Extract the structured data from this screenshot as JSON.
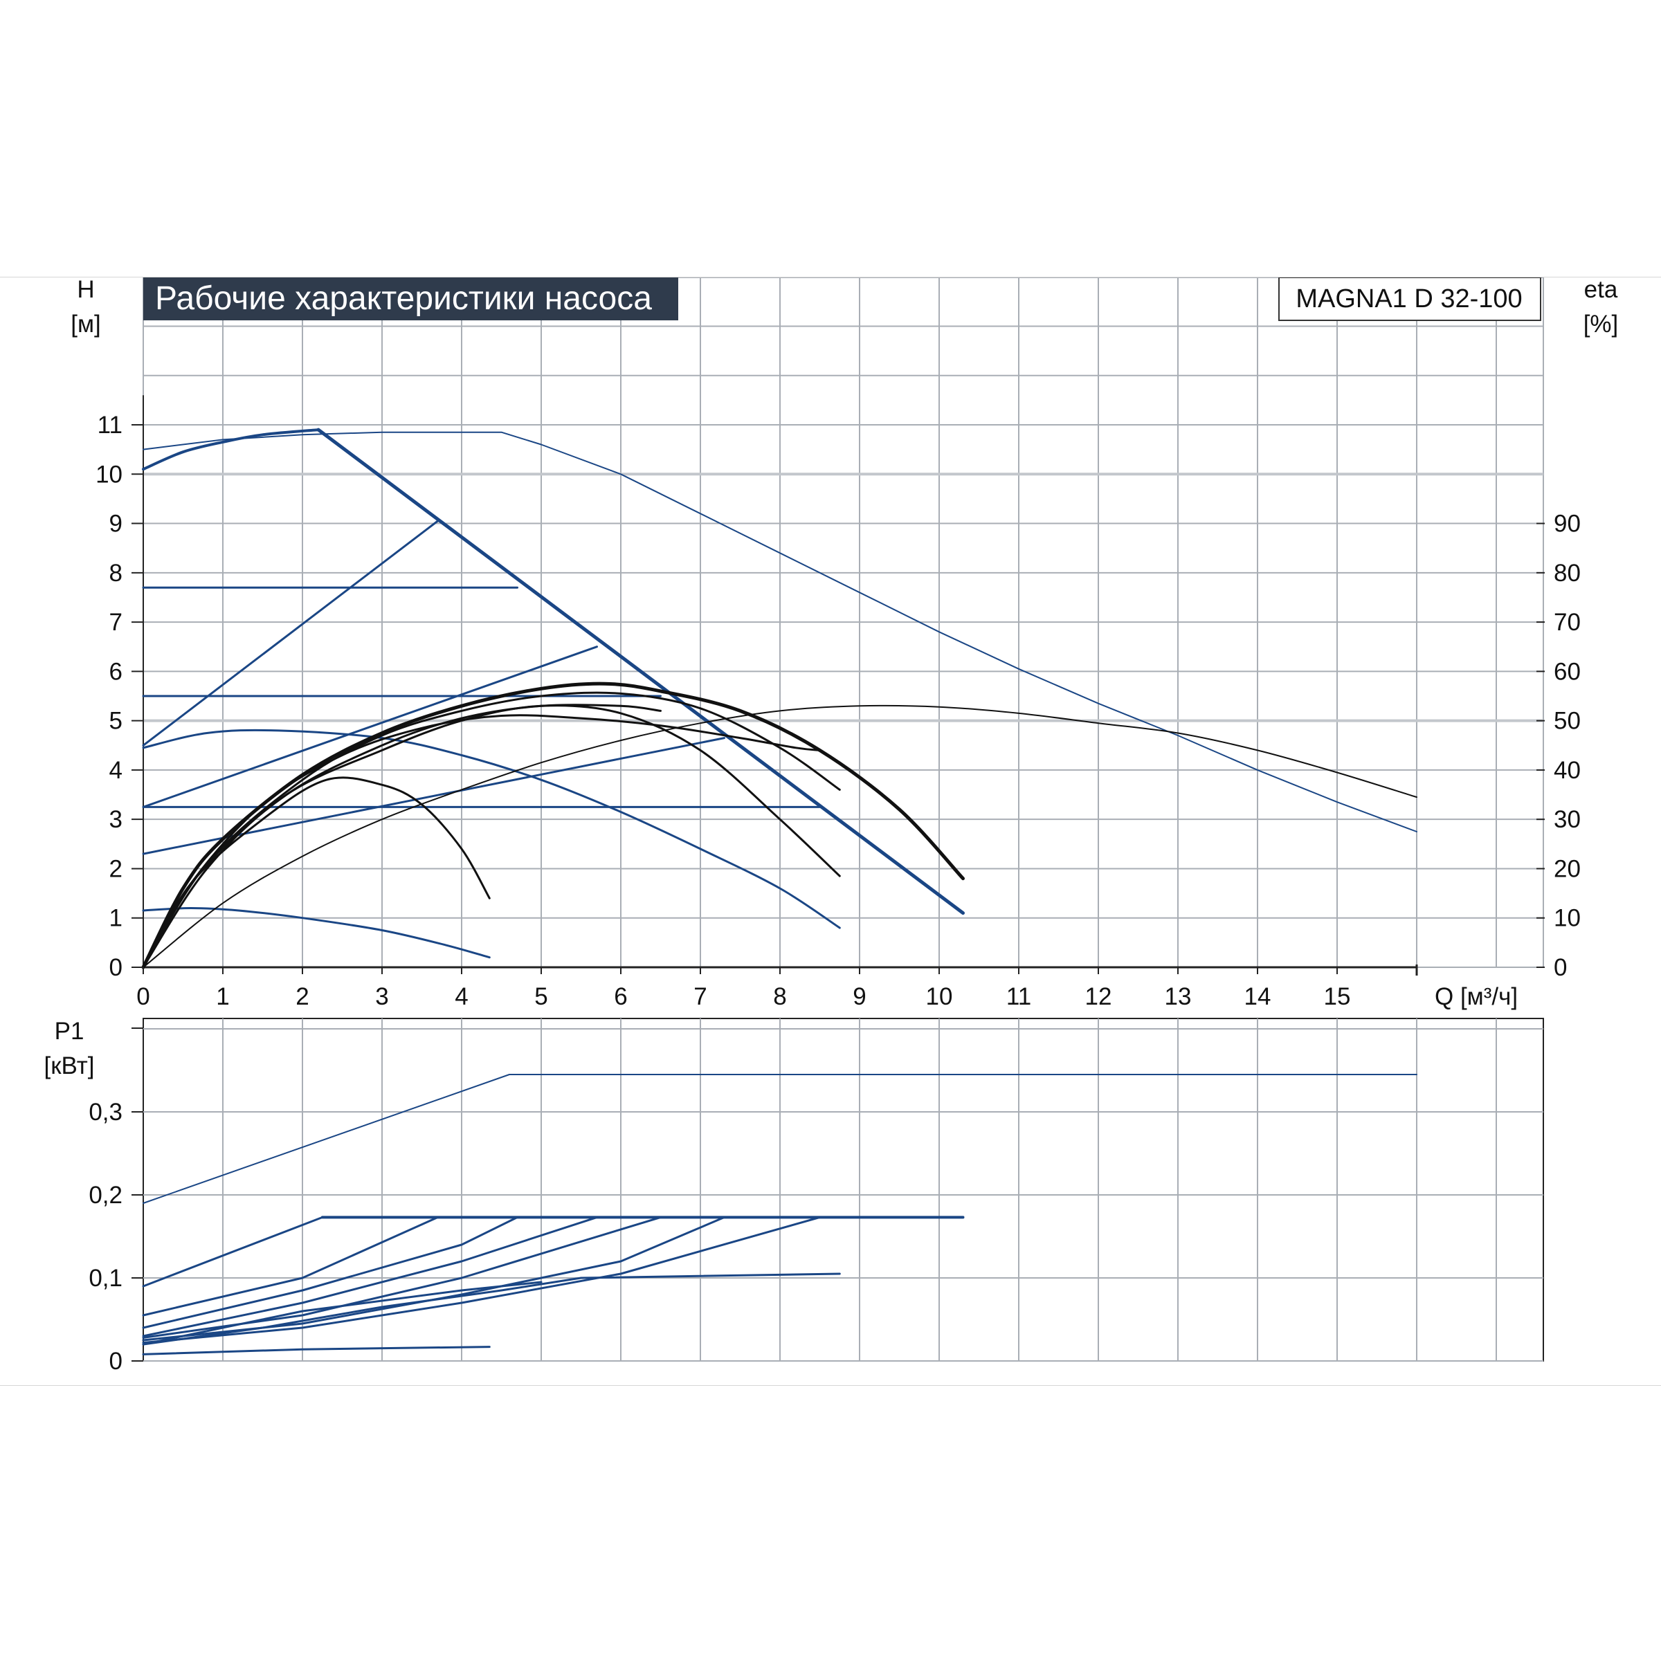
{
  "title": "Рабочие характеристики насоса",
  "model": "MAGNA1 D 32-100",
  "colors": {
    "title_bg": "#2f3b4c",
    "grid": "#a9aeb5",
    "grid_major": "#c3c7cc",
    "frame": "#222222",
    "series_blue": "#1a4685",
    "series_black": "#111111"
  },
  "chart_data": [
    {
      "type": "line",
      "panel": "head",
      "xlabel": "Q [м³/ч]",
      "ylabel_left": "H",
      "ylabel_left_unit": "[м]",
      "ylabel_right": "eta",
      "ylabel_right_unit": "[%]",
      "xlim": [
        0,
        16
      ],
      "ylim_left": [
        0,
        13.2
      ],
      "ylim_right": [
        0,
        132
      ],
      "x_ticks": [
        0,
        1,
        2,
        3,
        4,
        5,
        6,
        7,
        8,
        9,
        10,
        11,
        12,
        13,
        14,
        15
      ],
      "y_ticks_left": [
        0,
        1,
        2,
        3,
        4,
        5,
        6,
        7,
        8,
        9,
        10,
        11
      ],
      "y_ticks_right": [
        0,
        10,
        20,
        30,
        40,
        50,
        60,
        70,
        80,
        90
      ],
      "grid": true,
      "series": [
        {
          "role": "head-max-twin",
          "color": "blue",
          "width": 2,
          "smooth": false,
          "points": [
            [
              0,
              10.5
            ],
            [
              1,
              10.7
            ],
            [
              2,
              10.8
            ],
            [
              3,
              10.85
            ],
            [
              4.5,
              10.85
            ],
            [
              5,
              10.6
            ],
            [
              6,
              10.0
            ],
            [
              7,
              9.2
            ],
            [
              8,
              8.4
            ],
            [
              9,
              7.6
            ],
            [
              10,
              6.8
            ],
            [
              11,
              6.05
            ],
            [
              12,
              5.35
            ],
            [
              13,
              4.7
            ],
            [
              14,
              4.0
            ],
            [
              15,
              3.35
            ],
            [
              16,
              2.75
            ]
          ]
        },
        {
          "role": "head-max",
          "color": "blue",
          "width": 4,
          "smooth": true,
          "points": [
            [
              0,
              10.1
            ],
            [
              0.5,
              10.45
            ],
            [
              1,
              10.65
            ],
            [
              1.5,
              10.8
            ],
            [
              2.2,
              10.9
            ]
          ]
        },
        {
          "role": "head-max-limit",
          "color": "blue",
          "width": 5,
          "smooth": false,
          "points": [
            [
              2.2,
              10.9
            ],
            [
              10.3,
              1.1
            ]
          ]
        },
        {
          "role": "prop-pressure-1",
          "color": "blue",
          "width": 3,
          "smooth": false,
          "points": [
            [
              0,
              4.5
            ],
            [
              3.7,
              9.05
            ]
          ]
        },
        {
          "role": "const-pressure-1",
          "color": "blue",
          "width": 3,
          "smooth": false,
          "points": [
            [
              0,
              7.7
            ],
            [
              4.7,
              7.7
            ]
          ]
        },
        {
          "role": "prop-pressure-2",
          "color": "blue",
          "width": 3,
          "smooth": false,
          "points": [
            [
              0,
              3.25
            ],
            [
              5.7,
              6.5
            ]
          ]
        },
        {
          "role": "const-pressure-2",
          "color": "blue",
          "width": 3,
          "smooth": false,
          "points": [
            [
              0,
              5.5
            ],
            [
              6.5,
              5.5
            ]
          ]
        },
        {
          "role": "prop-pressure-3",
          "color": "blue",
          "width": 3,
          "smooth": false,
          "points": [
            [
              0,
              2.3
            ],
            [
              7.3,
              4.65
            ]
          ]
        },
        {
          "role": "const-pressure-3",
          "color": "blue",
          "width": 3,
          "smooth": false,
          "points": [
            [
              0,
              3.25
            ],
            [
              8.5,
              3.25
            ]
          ]
        },
        {
          "role": "speed-curve-mid",
          "color": "blue",
          "width": 3,
          "smooth": true,
          "points": [
            [
              0,
              4.45
            ],
            [
              0.8,
              4.75
            ],
            [
              1.7,
              4.8
            ],
            [
              3,
              4.65
            ],
            [
              4,
              4.3
            ],
            [
              5,
              3.8
            ],
            [
              6,
              3.15
            ],
            [
              7,
              2.4
            ],
            [
              8,
              1.6
            ],
            [
              8.75,
              0.8
            ]
          ]
        },
        {
          "role": "speed-curve-low",
          "color": "blue",
          "width": 3,
          "smooth": true,
          "points": [
            [
              0,
              1.15
            ],
            [
              0.6,
              1.2
            ],
            [
              1.2,
              1.15
            ],
            [
              2,
              1.0
            ],
            [
              3,
              0.75
            ],
            [
              3.8,
              0.45
            ],
            [
              4.35,
              0.2
            ]
          ]
        },
        {
          "role": "eff-max",
          "color": "black",
          "width": 2,
          "smooth": true,
          "points": [
            [
              0,
              0
            ],
            [
              1,
              1.3
            ],
            [
              2,
              2.25
            ],
            [
              3,
              3.0
            ],
            [
              4,
              3.6
            ],
            [
              5,
              4.15
            ],
            [
              6,
              4.6
            ],
            [
              7,
              4.95
            ],
            [
              8,
              5.2
            ],
            [
              9,
              5.3
            ],
            [
              10,
              5.28
            ],
            [
              11,
              5.15
            ],
            [
              12,
              4.95
            ],
            [
              13,
              4.75
            ],
            [
              14,
              4.4
            ],
            [
              15,
              3.95
            ],
            [
              16,
              3.45
            ]
          ]
        },
        {
          "role": "eff-1",
          "color": "black",
          "width": 5,
          "smooth": true,
          "points": [
            [
              0,
              0
            ],
            [
              0.5,
              1.6
            ],
            [
              1,
              2.6
            ],
            [
              2,
              3.9
            ],
            [
              3,
              4.75
            ],
            [
              4,
              5.3
            ],
            [
              5,
              5.65
            ],
            [
              5.8,
              5.75
            ],
            [
              6.5,
              5.6
            ],
            [
              7.5,
              5.2
            ],
            [
              8.5,
              4.4
            ],
            [
              9.5,
              3.2
            ],
            [
              10.3,
              1.8
            ]
          ]
        },
        {
          "role": "eff-2",
          "color": "black",
          "width": 3,
          "smooth": true,
          "points": [
            [
              0,
              0
            ],
            [
              0.6,
              1.7
            ],
            [
              1.5,
              3.3
            ],
            [
              2.5,
              4.3
            ],
            [
              3.5,
              4.85
            ],
            [
              4.5,
              5.1
            ],
            [
              5.5,
              5.05
            ],
            [
              6.5,
              4.9
            ],
            [
              7.5,
              4.65
            ],
            [
              8.2,
              4.45
            ],
            [
              8.5,
              4.4
            ]
          ]
        },
        {
          "role": "eff-3",
          "color": "black",
          "width": 3,
          "smooth": true,
          "points": [
            [
              0,
              0
            ],
            [
              0.8,
              2.1
            ],
            [
              2,
              3.8
            ],
            [
              3,
              4.7
            ],
            [
              4,
              5.2
            ],
            [
              5,
              5.5
            ],
            [
              6,
              5.55
            ],
            [
              7,
              5.25
            ],
            [
              8,
              4.45
            ],
            [
              8.75,
              3.6
            ]
          ]
        },
        {
          "role": "eff-4",
          "color": "black",
          "width": 3,
          "smooth": true,
          "points": [
            [
              0,
              0
            ],
            [
              0.8,
              2.0
            ],
            [
              1.8,
              3.5
            ],
            [
              3,
              4.4
            ],
            [
              4,
              5.0
            ],
            [
              5,
              5.3
            ],
            [
              6,
              5.15
            ],
            [
              7,
              4.4
            ],
            [
              8,
              3.0
            ],
            [
              8.75,
              1.85
            ]
          ]
        },
        {
          "role": "eff-5",
          "color": "black",
          "width": 3,
          "smooth": true,
          "points": [
            [
              0,
              0
            ],
            [
              0.6,
              1.7
            ],
            [
              1.5,
              3.0
            ],
            [
              2.3,
              3.8
            ],
            [
              3,
              3.7
            ],
            [
              3.5,
              3.3
            ],
            [
              4,
              2.4
            ],
            [
              4.35,
              1.4
            ]
          ]
        },
        {
          "role": "eff-6",
          "color": "black",
          "width": 3,
          "smooth": true,
          "points": [
            [
              0,
              0
            ],
            [
              0.7,
              1.9
            ],
            [
              1.8,
              3.5
            ],
            [
              3,
              4.5
            ],
            [
              4,
              5.05
            ],
            [
              5,
              5.3
            ],
            [
              6,
              5.3
            ],
            [
              6.5,
              5.2
            ]
          ]
        }
      ]
    },
    {
      "type": "line",
      "panel": "power",
      "ylabel": "P1",
      "ylabel_unit": "[кВт]",
      "xlim": [
        0,
        16
      ],
      "ylim": [
        0,
        0.4
      ],
      "y_ticks": [
        0,
        0.1,
        0.2,
        0.3
      ],
      "y_tick_labels": [
        "0",
        "0,1",
        "0,2",
        "0,3"
      ],
      "grid": true,
      "series": [
        {
          "role": "p1-max-twin",
          "color": "blue",
          "width": 2,
          "smooth": false,
          "points": [
            [
              0,
              0.19
            ],
            [
              4.6,
              0.345
            ],
            [
              16,
              0.345
            ]
          ]
        },
        {
          "role": "p1-max-limit",
          "color": "blue",
          "width": 4,
          "smooth": false,
          "points": [
            [
              2.25,
              0.173
            ],
            [
              10.3,
              0.173
            ]
          ]
        },
        {
          "role": "p1-1",
          "color": "blue",
          "width": 3,
          "smooth": false,
          "points": [
            [
              0,
              0.09
            ],
            [
              2.25,
              0.173
            ]
          ]
        },
        {
          "role": "p1-2",
          "color": "blue",
          "width": 3,
          "smooth": false,
          "points": [
            [
              0,
              0.055
            ],
            [
              2,
              0.1
            ],
            [
              3.7,
              0.173
            ]
          ]
        },
        {
          "role": "p1-3",
          "color": "blue",
          "width": 3,
          "smooth": false,
          "points": [
            [
              0,
              0.04
            ],
            [
              2,
              0.085
            ],
            [
              4,
              0.14
            ],
            [
              4.7,
              0.173
            ]
          ]
        },
        {
          "role": "p1-4",
          "color": "blue",
          "width": 3,
          "smooth": false,
          "points": [
            [
              0,
              0.03
            ],
            [
              2,
              0.07
            ],
            [
              4,
              0.12
            ],
            [
              5.7,
              0.173
            ]
          ]
        },
        {
          "role": "p1-5",
          "color": "blue",
          "width": 3,
          "smooth": false,
          "points": [
            [
              0,
              0.028
            ],
            [
              2,
              0.055
            ],
            [
              4,
              0.1
            ],
            [
              6.5,
              0.173
            ]
          ]
        },
        {
          "role": "p1-6",
          "color": "blue",
          "width": 3,
          "smooth": false,
          "points": [
            [
              0,
              0.025
            ],
            [
              2,
              0.045
            ],
            [
              4,
              0.08
            ],
            [
              6,
              0.12
            ],
            [
              7.3,
              0.173
            ]
          ]
        },
        {
          "role": "p1-7",
          "color": "blue",
          "width": 3,
          "smooth": false,
          "points": [
            [
              0,
              0.022
            ],
            [
              2,
              0.04
            ],
            [
              4,
              0.07
            ],
            [
              6,
              0.105
            ],
            [
              8.5,
              0.173
            ]
          ]
        },
        {
          "role": "p1-8",
          "color": "blue",
          "width": 3,
          "smooth": false,
          "points": [
            [
              0,
              0.02
            ],
            [
              1.5,
              0.04
            ],
            [
              3,
              0.065
            ],
            [
              4.5,
              0.085
            ],
            [
              5.5,
              0.1
            ],
            [
              8.75,
              0.105
            ]
          ]
        },
        {
          "role": "p1-9",
          "color": "blue",
          "width": 3,
          "smooth": false,
          "points": [
            [
              0,
              0.02
            ],
            [
              2,
              0.06
            ],
            [
              4,
              0.085
            ],
            [
              5,
              0.095
            ]
          ]
        },
        {
          "role": "p1-low",
          "color": "blue",
          "width": 3,
          "smooth": false,
          "points": [
            [
              0,
              0.008
            ],
            [
              2,
              0.014
            ],
            [
              4.35,
              0.017
            ]
          ]
        }
      ]
    }
  ]
}
